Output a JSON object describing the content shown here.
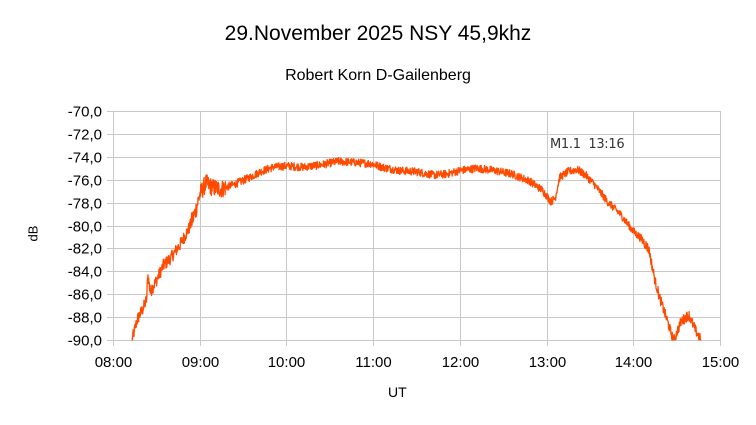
{
  "chart_data": {
    "type": "line",
    "title": "29.November 2025  NSY 45,9khz",
    "subtitle": "Robert Korn  D-Gailenberg",
    "xlabel": "UT",
    "ylabel": "dB",
    "ylim": [
      -90,
      -70
    ],
    "xlim": [
      "08:00",
      "15:00"
    ],
    "grid": true,
    "legend": "none",
    "y_ticks": [
      "-70,0",
      "-72,0",
      "-74,0",
      "-76,0",
      "-78,0",
      "-80,0",
      "-82,0",
      "-84,0",
      "-86,0",
      "-88,0",
      "-90,0"
    ],
    "x_ticks": [
      "08:00",
      "09:00",
      "10:00",
      "11:00",
      "12:00",
      "13:00",
      "14:00",
      "15:00"
    ],
    "annotations": [
      {
        "text": "M1.1  13:16",
        "x": "13:16",
        "y": -73.2
      }
    ],
    "series": [
      {
        "name": "NSY 45,9kHz",
        "color": "#ff4a00",
        "x_hours": [
          8.22,
          8.28,
          8.35,
          8.39,
          8.4,
          8.43,
          8.5,
          8.58,
          8.67,
          8.78,
          8.88,
          8.95,
          9.0,
          9.07,
          9.15,
          9.25,
          9.4,
          9.55,
          9.7,
          9.85,
          10.0,
          10.2,
          10.4,
          10.6,
          10.8,
          10.98,
          11.1,
          11.3,
          11.5,
          11.7,
          11.85,
          12.0,
          12.2,
          12.4,
          12.6,
          12.8,
          12.95,
          13.05,
          13.1,
          13.15,
          13.25,
          13.35,
          13.45,
          13.55,
          13.7,
          13.85,
          14.0,
          14.1,
          14.18,
          14.25,
          14.3,
          14.4,
          14.46,
          14.47,
          14.55,
          14.64,
          14.72,
          14.78
        ],
        "values": [
          -90.0,
          -88.2,
          -87.2,
          -86.4,
          -84.2,
          -85.8,
          -84.8,
          -83.5,
          -82.8,
          -81.6,
          -80.2,
          -78.8,
          -77.3,
          -76.3,
          -76.7,
          -76.8,
          -76.4,
          -75.9,
          -75.3,
          -74.9,
          -74.8,
          -74.9,
          -74.7,
          -74.4,
          -74.5,
          -74.6,
          -74.9,
          -75.2,
          -75.3,
          -75.6,
          -75.5,
          -75.2,
          -75.0,
          -75.2,
          -75.5,
          -76.1,
          -76.9,
          -77.9,
          -77.6,
          -75.8,
          -75.3,
          -75.1,
          -75.6,
          -76.4,
          -77.9,
          -79.0,
          -80.5,
          -81.2,
          -82.1,
          -84.8,
          -86.2,
          -88.5,
          -90.0,
          -90.0,
          -88.4,
          -87.8,
          -89.2,
          -90.0
        ]
      }
    ]
  }
}
